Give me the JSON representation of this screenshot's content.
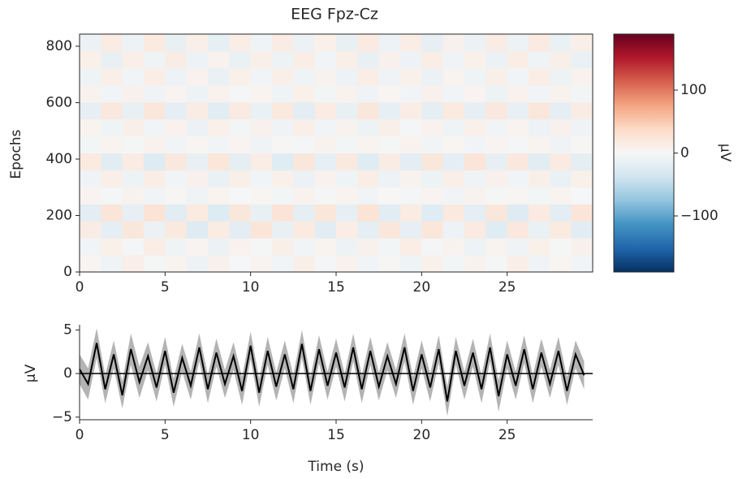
{
  "chart_data": [
    {
      "type": "heatmap",
      "title": "EEG Fpz-Cz",
      "ylabel": "Epochs",
      "xlim": [
        0,
        30
      ],
      "ylim": [
        0,
        843
      ],
      "xticks": [
        0,
        5,
        10,
        15,
        20,
        25
      ],
      "yticks": [
        0,
        200,
        400,
        600,
        800
      ],
      "z": [
        [
          4,
          -8,
          12,
          -3,
          6,
          -10,
          9,
          -2,
          5,
          -7,
          11,
          -4,
          8,
          -6,
          3,
          -9,
          10,
          -5,
          7,
          -3,
          12,
          -8,
          4,
          -6
        ],
        [
          -6,
          10,
          -4,
          14,
          -9,
          5,
          -12,
          8,
          -3,
          11,
          -7,
          6,
          -10,
          9,
          -5,
          13,
          -4,
          7,
          -11,
          6,
          -8,
          10,
          -3,
          9
        ],
        [
          15,
          -18,
          22,
          -12,
          19,
          -25,
          16,
          -20,
          24,
          -14,
          18,
          -22,
          13,
          -19,
          21,
          -16,
          23,
          -11,
          17,
          -24,
          20,
          -13,
          18,
          -21
        ],
        [
          -20,
          24,
          -16,
          27,
          -22,
          18,
          -26,
          21,
          -15,
          25,
          -19,
          23,
          -17,
          26,
          -21,
          16,
          -24,
          19,
          -18,
          22,
          -25,
          17,
          -20,
          24
        ],
        [
          5,
          -4,
          7,
          -6,
          3,
          -8,
          6,
          -2,
          4,
          -5,
          8,
          -3,
          6,
          -7,
          2,
          -4,
          5,
          -6,
          7,
          -3,
          4,
          -5,
          6,
          -2
        ],
        [
          -8,
          12,
          -10,
          14,
          -6,
          9,
          -13,
          11,
          -7,
          10,
          -12,
          8,
          -9,
          13,
          -11,
          7,
          -10,
          12,
          -8,
          9,
          -6,
          11,
          -13,
          10
        ],
        [
          18,
          -22,
          16,
          -25,
          20,
          -15,
          23,
          -19,
          14,
          -24,
          21,
          -17,
          19,
          -23,
          15,
          -20,
          22,
          -18,
          24,
          -16,
          20,
          -21,
          17,
          -19
        ],
        [
          -5,
          6,
          -3,
          8,
          -7,
          4,
          -6,
          5,
          -8,
          3,
          -4,
          7,
          -5,
          6,
          -3,
          8,
          -6,
          4,
          -7,
          5,
          -4,
          6,
          -8,
          3
        ],
        [
          6,
          -9,
          11,
          -7,
          8,
          -12,
          10,
          -5,
          9,
          -8,
          12,
          -6,
          7,
          -10,
          11,
          -4,
          8,
          -9,
          10,
          -7,
          6,
          -11,
          9,
          -8
        ],
        [
          -16,
          20,
          -14,
          22,
          -18,
          15,
          -21,
          17,
          -13,
          19,
          -20,
          16,
          -15,
          21,
          -17,
          14,
          -19,
          18,
          -16,
          20,
          -14,
          22,
          -18,
          15
        ],
        [
          7,
          -6,
          9,
          -8,
          5,
          -10,
          8,
          -4,
          6,
          -9,
          10,
          -5,
          7,
          -8,
          4,
          -6,
          9,
          -7,
          5,
          -10,
          8,
          -6,
          7,
          -5
        ],
        [
          -9,
          12,
          -7,
          14,
          -11,
          8,
          -13,
          10,
          -6,
          12,
          -9,
          7,
          -11,
          13,
          -8,
          10,
          -12,
          6,
          -9,
          11,
          -7,
          13,
          -10,
          8
        ],
        [
          10,
          -14,
          12,
          -9,
          15,
          -11,
          8,
          -13,
          11,
          -10,
          14,
          -7,
          12,
          -15,
          9,
          -11,
          13,
          -8,
          10,
          -12,
          14,
          -9,
          11,
          -13
        ],
        [
          -12,
          16,
          -10,
          18,
          -14,
          11,
          -17,
          13,
          -9,
          15,
          -12,
          10,
          -14,
          17,
          -11,
          13,
          -16,
          9,
          -12,
          15,
          -10,
          17,
          -13,
          11
        ]
      ],
      "colors": [
        "#053061",
        "#2166ac",
        "#4393c3",
        "#92c5de",
        "#d1e5f0",
        "#f7f7f7",
        "#fddbc7",
        "#f4a582",
        "#d6604d",
        "#b2182b",
        "#67001f"
      ],
      "clim": [
        -189,
        189
      ],
      "cticks": [
        {
          "value": -100,
          "label": "−100"
        },
        0,
        100
      ],
      "clabel": "µV"
    },
    {
      "type": "line",
      "xlabel": "Time (s)",
      "ylabel": "µV",
      "xlim": [
        0,
        30
      ],
      "ylim": [
        -5.3,
        5.6
      ],
      "xticks": [
        0,
        5,
        10,
        15,
        20,
        25
      ],
      "yticks": [
        {
          "value": -5,
          "label": "−5"
        },
        0,
        5
      ],
      "hline": 0,
      "color": "#000000",
      "band_color": "#999999",
      "x": [
        0,
        0.5,
        1,
        1.5,
        2,
        2.5,
        3,
        3.5,
        4,
        4.5,
        5,
        5.5,
        6,
        6.5,
        7,
        7.5,
        8,
        8.5,
        9,
        9.5,
        10,
        10.5,
        11,
        11.5,
        12,
        12.5,
        13,
        13.5,
        14,
        14.5,
        15,
        15.5,
        16,
        16.5,
        17,
        17.5,
        18,
        18.5,
        19,
        19.5,
        20,
        20.5,
        21,
        21.5,
        22,
        22.5,
        23,
        23.5,
        24,
        24.5,
        25,
        25.5,
        26,
        26.5,
        27,
        27.5,
        28,
        28.5,
        29,
        29.5
      ],
      "values": [
        0.5,
        -1.2,
        3.5,
        -1.8,
        2.2,
        -2.5,
        2.8,
        -1.0,
        2.0,
        -1.6,
        2.6,
        -2.2,
        1.8,
        -1.4,
        3.0,
        -1.8,
        2.4,
        -1.2,
        2.0,
        -2.0,
        3.2,
        -2.2,
        2.6,
        -1.5,
        2.2,
        -1.8,
        3.4,
        -2.0,
        2.8,
        -1.4,
        2.4,
        -1.6,
        3.0,
        -1.8,
        2.6,
        -1.5,
        2.0,
        -1.2,
        3.0,
        -2.0,
        2.2,
        -1.6,
        2.8,
        -3.2,
        2.6,
        -1.4,
        2.4,
        -1.8,
        3.0,
        -2.6,
        2.2,
        -1.4,
        2.8,
        -1.8,
        2.4,
        -1.2,
        2.6,
        -2.0,
        2.2,
        -0.2
      ],
      "lower": [
        -1.2,
        -3.0,
        1.8,
        -3.4,
        0.6,
        -4.0,
        1.0,
        -2.8,
        0.4,
        -3.2,
        1.0,
        -3.8,
        0.2,
        -3.0,
        1.4,
        -3.4,
        0.8,
        -2.8,
        0.4,
        -3.6,
        1.6,
        -3.8,
        1.0,
        -3.1,
        0.6,
        -3.4,
        1.8,
        -3.6,
        1.2,
        -3.0,
        0.8,
        -3.2,
        1.4,
        -3.4,
        1.0,
        -3.1,
        0.4,
        -2.8,
        1.4,
        -3.6,
        0.6,
        -3.2,
        1.2,
        -4.9,
        1.0,
        -3.0,
        0.8,
        -3.4,
        1.4,
        -4.4,
        0.6,
        -3.0,
        1.2,
        -3.4,
        0.8,
        -2.8,
        1.0,
        -3.6,
        0.6,
        -1.8
      ],
      "upper": [
        2.2,
        0.6,
        5.2,
        -0.2,
        3.8,
        -0.9,
        4.6,
        0.8,
        3.6,
        0.0,
        4.2,
        -0.6,
        3.4,
        0.2,
        4.6,
        -0.2,
        4.0,
        0.4,
        3.6,
        -0.4,
        4.8,
        -0.6,
        4.2,
        0.1,
        3.8,
        -0.2,
        5.0,
        -0.4,
        4.4,
        0.2,
        4.0,
        0.0,
        4.6,
        -0.2,
        4.2,
        0.1,
        3.6,
        0.4,
        4.6,
        -0.4,
        3.8,
        0.0,
        4.4,
        -1.5,
        4.2,
        0.2,
        4.0,
        -0.2,
        4.6,
        -0.8,
        3.8,
        0.2,
        4.4,
        -0.2,
        4.0,
        0.4,
        4.2,
        -0.4,
        3.8,
        1.4
      ]
    }
  ]
}
